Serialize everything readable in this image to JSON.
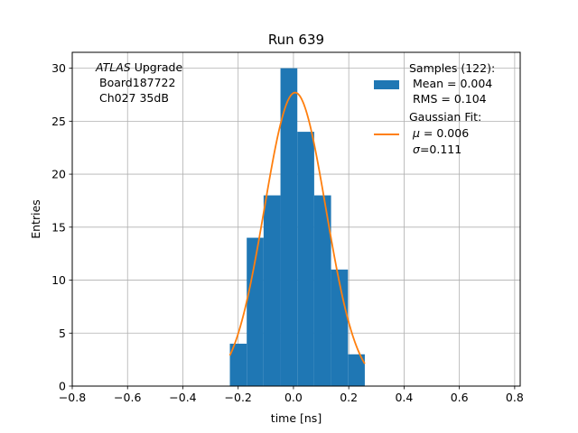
{
  "chart_data": {
    "type": "bar",
    "title": "Run 639",
    "xlabel": "time [ns]",
    "ylabel": "Entries",
    "xlim": [
      -0.8,
      0.82
    ],
    "ylim": [
      0,
      31.5
    ],
    "grid": true,
    "xticks": [
      -0.8,
      -0.6,
      -0.4,
      -0.2,
      0.0,
      0.2,
      0.4,
      0.6,
      0.8
    ],
    "xtick_labels": [
      "−0.8",
      "−0.6",
      "−0.4",
      "−0.2",
      "0.0",
      "0.2",
      "0.4",
      "0.6",
      "0.8"
    ],
    "yticks": [
      0,
      5,
      10,
      15,
      20,
      25,
      30
    ],
    "ytick_labels": [
      "0",
      "5",
      "10",
      "15",
      "20",
      "25",
      "30"
    ],
    "histogram": {
      "color": "#1f77b4",
      "bin_edges": [
        -0.23,
        -0.169,
        -0.108,
        -0.047,
        0.014,
        0.075,
        0.136,
        0.197,
        0.258
      ],
      "counts": [
        4,
        14,
        18,
        30,
        24,
        18,
        11,
        3
      ]
    },
    "fit": {
      "color": "#ff7f0e",
      "amplitude": 27.7,
      "mu": 0.006,
      "sigma": 0.111,
      "x_range": [
        -0.23,
        0.258
      ]
    },
    "annotation": {
      "line1_italic": "ATLAS",
      "line1_rest": " Upgrade",
      "line2": "Board187722",
      "line3": "Ch027 35dB"
    },
    "legend": {
      "position": "top-right",
      "samples": {
        "line1": "Samples (122):",
        "line2": "Mean = 0.004",
        "line3": "RMS = 0.104"
      },
      "fit": {
        "line1": "Gaussian Fit:",
        "mu_symbol": "μ",
        "mu_text": " = 0.006",
        "sigma_symbol": "σ",
        "sigma_text": "=0.111"
      }
    }
  }
}
